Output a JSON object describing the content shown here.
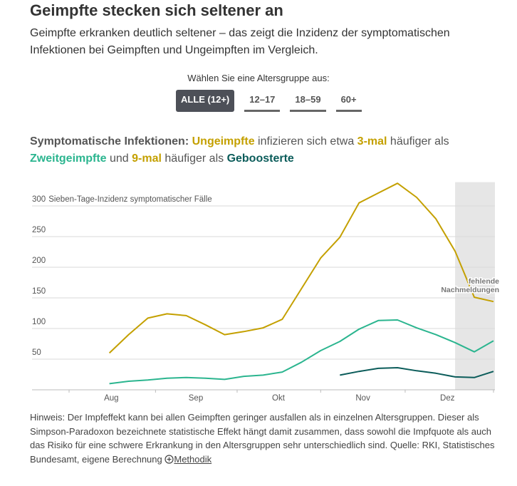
{
  "header": {
    "title": "Geimpfte stecken sich seltener an",
    "subtitle": "Geimpfte erkranken deutlich seltener – das zeigt die Inzidenz der symptomatischen Infektionen bei Geimpften und Ungeimpften im Vergleich."
  },
  "selector": {
    "prompt": "Wählen Sie eine Altersgruppe aus:",
    "options": [
      "ALLE (12+)",
      "12–17",
      "18–59",
      "60+"
    ]
  },
  "headline": [
    {
      "text": "Symptomatische Infektionen:",
      "color": "#555555",
      "bold": true
    },
    {
      "text": " "
    },
    {
      "text": "Ungeimpfte",
      "color": "#c4a000",
      "bold": true
    },
    {
      "text": " infizieren sich etwa "
    },
    {
      "text": "3-mal",
      "color": "#c4a000",
      "bold": true
    },
    {
      "text": " häufiger als "
    },
    {
      "text": "Zweitgeimpfte",
      "color": "#2bb58f",
      "bold": true
    },
    {
      "text": " und "
    },
    {
      "text": "9-mal",
      "color": "#c4a000",
      "bold": true
    },
    {
      "text": " häufiger als "
    },
    {
      "text": "Geboosterte",
      "color": "#0b5c5a",
      "bold": true
    }
  ],
  "chart_data": {
    "type": "line",
    "y_label": "Sieben-Tage-Inzidenz symptomatischer Fälle",
    "x": [
      32,
      33,
      34,
      35,
      36,
      37,
      38,
      39,
      40,
      41,
      42,
      43,
      44,
      45,
      46,
      47,
      48,
      49,
      50,
      51,
      52
    ],
    "xlim": [
      29.9,
      52
    ],
    "xticks": [
      {
        "value": 32.1,
        "label": "Aug"
      },
      {
        "value": 36.5,
        "label": "Sep"
      },
      {
        "value": 40.8,
        "label": "Okt"
      },
      {
        "value": 45.2,
        "label": "Nov"
      },
      {
        "value": 49.6,
        "label": "Dez"
      }
    ],
    "ylim": [
      0,
      340
    ],
    "yticks": [
      50,
      100,
      150,
      200,
      250,
      300
    ],
    "grid": true,
    "shade_x": [
      50,
      52
    ],
    "shade_label": "fehlende Nachmeldungen",
    "series": [
      {
        "name": "Ungeimpfte",
        "color": "#c4a000",
        "values": [
          60,
          90,
          117,
          124,
          121,
          106,
          90,
          95,
          101,
          115,
          165,
          215,
          249,
          305,
          321,
          337,
          314,
          279,
          226,
          151,
          144
        ]
      },
      {
        "name": "Zweitgeimpfte",
        "color": "#2bb58f",
        "values": [
          10,
          14,
          16,
          19,
          20,
          19,
          17,
          22,
          24,
          29,
          45,
          64,
          79,
          99,
          113,
          114,
          101,
          90,
          77,
          62,
          80
        ]
      },
      {
        "name": "Geboosterte",
        "color": "#0b5c5a",
        "values": [
          null,
          null,
          null,
          null,
          null,
          null,
          null,
          null,
          null,
          null,
          null,
          null,
          24,
          30,
          35,
          36,
          31,
          27,
          21,
          20,
          30
        ]
      }
    ]
  },
  "footer": {
    "note": "Hinweis: Der Impfeffekt kann bei allen Geimpften geringer ausfallen als in einzelnen Altersgruppen. Dieser als Simpson-Paradoxon bezeichnete statistische Effekt hängt damit zusammen, dass sowohl die Impfquote als auch das Risiko für eine schwere Erkrankung in den Altersgruppen sehr unterschiedlich sind. Quelle: RKI, Statistisches Bundesamt, eigene Berechnung",
    "link": "Methodik"
  }
}
